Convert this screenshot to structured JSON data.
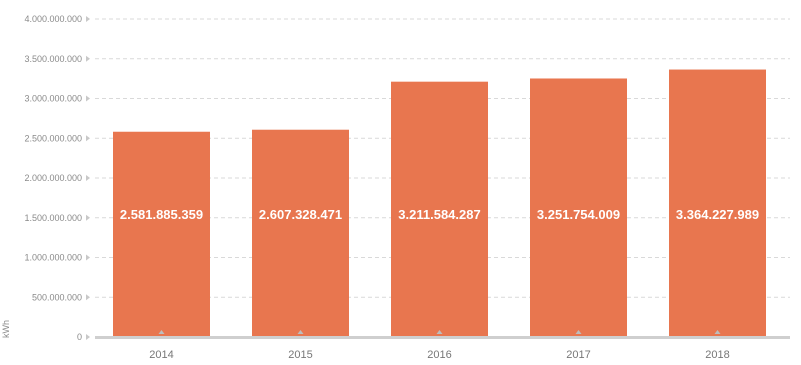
{
  "chart_data": {
    "type": "bar",
    "categories": [
      "2014",
      "2015",
      "2016",
      "2017",
      "2018"
    ],
    "values": [
      2581885359,
      2607328471,
      3211584287,
      3251754009,
      3364227989
    ],
    "data_labels": [
      "2.581.885.359",
      "2.607.328.471",
      "3.211.584.287",
      "3.251.754.009",
      "3.364.227.989"
    ],
    "title": "",
    "xlabel": "",
    "ylabel": "kWh",
    "ylim": [
      0,
      4000000000
    ],
    "yticks": [
      0,
      500000000,
      1000000000,
      1500000000,
      2000000000,
      2500000000,
      3000000000,
      3500000000,
      4000000000
    ],
    "ytick_labels": [
      "0",
      "500.000.000",
      "1.000.000.000",
      "1.500.000.000",
      "2.000.000.000",
      "2.500.000.000",
      "3.000.000.000",
      "3.500.000.000",
      "4.000.000.000"
    ],
    "grid": true,
    "bar_color": "#e8764f",
    "grid_color": "#d9d9d9",
    "axis_color": "#cfcfcf"
  }
}
